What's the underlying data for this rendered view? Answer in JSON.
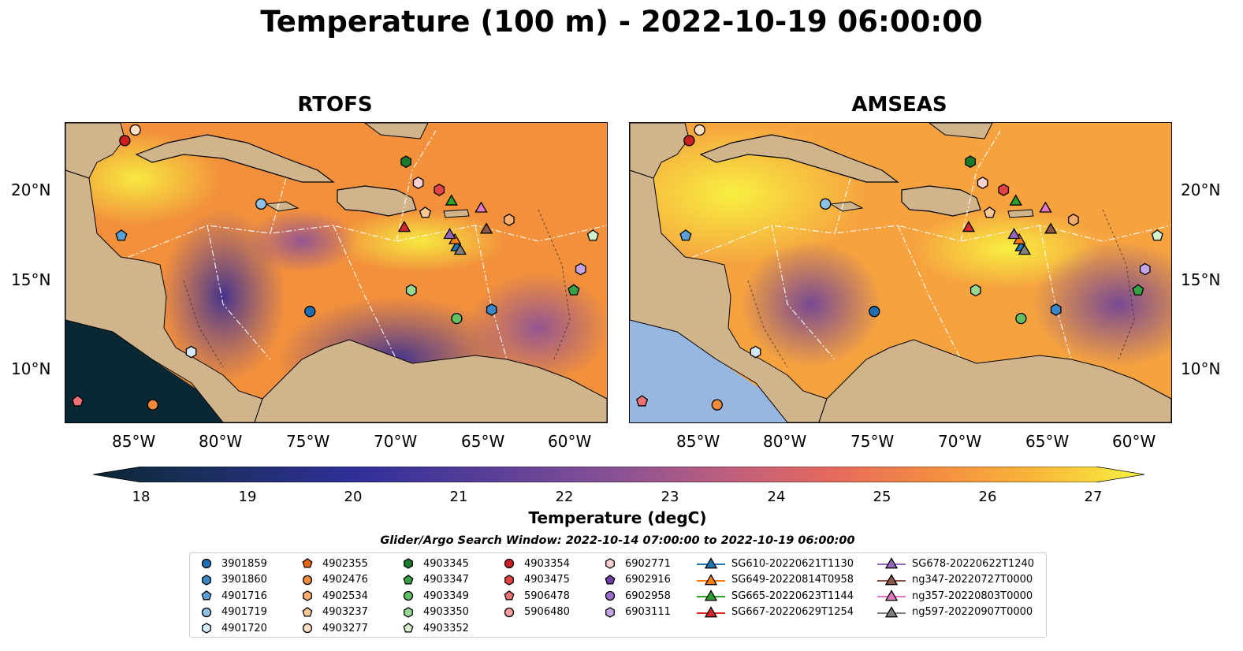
{
  "title": "Temperature (100 m) - 2022-10-19 06:00:00",
  "panels": [
    {
      "name": "rtofs",
      "title": "RTOFS"
    },
    {
      "name": "amseas",
      "title": "AMSEAS"
    }
  ],
  "map_extent": {
    "lon_min": -89,
    "lon_max": -58,
    "lat_min": 7,
    "lat_max": 24
  },
  "lat_ticks": [
    "20°N",
    "15°N",
    "10°N"
  ],
  "lon_ticks": [
    "85°W",
    "80°W",
    "75°W",
    "70°W",
    "65°W",
    "60°W"
  ],
  "colorbar": {
    "label": "Temperature (degC)",
    "min": 18,
    "max": 27,
    "extend": "both",
    "ticks": [
      "18",
      "19",
      "20",
      "21",
      "22",
      "23",
      "24",
      "25",
      "26",
      "27"
    ],
    "colormap": "thermal"
  },
  "colors": {
    "land": "#d0b48b",
    "shallow_water": "#97b6e0",
    "cold": "#0a2734",
    "warm": "#f8f341"
  },
  "search_window": "Glider/Argo Search Window: 2022-10-14 07:00:00 to 2022-10-19 06:00:00",
  "legend": [
    {
      "label": "3901859",
      "marker": "circle",
      "color": "#1f6fb2"
    },
    {
      "label": "3901860",
      "marker": "hexagon",
      "color": "#3b86c4"
    },
    {
      "label": "4901716",
      "marker": "pentagon",
      "color": "#5aa0d6"
    },
    {
      "label": "4901719",
      "marker": "circle",
      "color": "#8fc1e6"
    },
    {
      "label": "4901720",
      "marker": "hexagon",
      "color": "#d4e9f7"
    },
    {
      "label": "4902355",
      "marker": "pentagon",
      "color": "#e8680f"
    },
    {
      "label": "4902476",
      "marker": "circle",
      "color": "#f58b3a"
    },
    {
      "label": "4902534",
      "marker": "hexagon",
      "color": "#f9ad6e"
    },
    {
      "label": "4903237",
      "marker": "pentagon",
      "color": "#fcc896"
    },
    {
      "label": "4903277",
      "marker": "circle",
      "color": "#fde0c2"
    },
    {
      "label": "4903345",
      "marker": "hexagon",
      "color": "#1b7a2b"
    },
    {
      "label": "4903347",
      "marker": "pentagon",
      "color": "#35a045"
    },
    {
      "label": "4903349",
      "marker": "circle",
      "color": "#63bf63"
    },
    {
      "label": "4903350",
      "marker": "hexagon",
      "color": "#96d892"
    },
    {
      "label": "4903352",
      "marker": "pentagon",
      "color": "#d3f1cd"
    },
    {
      "label": "4903354",
      "marker": "circle",
      "color": "#cc1f24"
    },
    {
      "label": "4903475",
      "marker": "hexagon",
      "color": "#e34346"
    },
    {
      "label": "5906478",
      "marker": "pentagon",
      "color": "#ef7173"
    },
    {
      "label": "5906480",
      "marker": "circle",
      "color": "#f6a0a0"
    },
    {
      "label": "6902771",
      "marker": "hexagon",
      "color": "#fbd0cf"
    },
    {
      "label": "6902916",
      "marker": "pentagon",
      "color": "#7240a8"
    },
    {
      "label": "6902958",
      "marker": "circle",
      "color": "#9a6fcf"
    },
    {
      "label": "6903111",
      "marker": "hexagon",
      "color": "#c3a4e4"
    },
    {
      "label": "SG610-20220621T1130",
      "marker": "triangle",
      "color": "#1f77b4"
    },
    {
      "label": "SG649-20220814T0958",
      "marker": "triangle",
      "color": "#ff7f0e"
    },
    {
      "label": "SG665-20220623T1144",
      "marker": "triangle",
      "color": "#2ca02c"
    },
    {
      "label": "SG667-20220629T1254",
      "marker": "triangle",
      "color": "#d62728"
    },
    {
      "label": "SG678-20220622T1240",
      "marker": "triangle",
      "color": "#9467bd"
    },
    {
      "label": "ng347-20220727T0000",
      "marker": "triangle",
      "color": "#8c564b"
    },
    {
      "label": "ng357-20220803T0000",
      "marker": "triangle",
      "color": "#e377c2"
    },
    {
      "label": "ng597-20220907T0000",
      "marker": "triangle",
      "color": "#7f7f7f"
    }
  ],
  "observations": [
    {
      "id": "3901859",
      "lon": -75.0,
      "lat": 13.3
    },
    {
      "id": "3901860",
      "lon": -64.6,
      "lat": 13.4
    },
    {
      "id": "4901716",
      "lon": -85.8,
      "lat": 17.6
    },
    {
      "id": "4901719",
      "lon": -77.8,
      "lat": 19.4
    },
    {
      "id": "4901720",
      "lon": -81.8,
      "lat": 11.0
    },
    {
      "id": "4902476",
      "lon": -84.0,
      "lat": 8.0
    },
    {
      "id": "4902534",
      "lon": -63.6,
      "lat": 18.5
    },
    {
      "id": "4903237",
      "lon": -68.4,
      "lat": 18.9
    },
    {
      "id": "4903277",
      "lon": -85.0,
      "lat": 23.6
    },
    {
      "id": "4903345",
      "lon": -69.5,
      "lat": 21.8
    },
    {
      "id": "4903347",
      "lon": -59.9,
      "lat": 14.5
    },
    {
      "id": "4903349",
      "lon": -66.6,
      "lat": 12.9
    },
    {
      "id": "4903350",
      "lon": -69.2,
      "lat": 14.5
    },
    {
      "id": "4903352",
      "lon": -58.8,
      "lat": 17.6
    },
    {
      "id": "4903354",
      "lon": -85.6,
      "lat": 23.0
    },
    {
      "id": "4903475",
      "lon": -67.6,
      "lat": 20.2
    },
    {
      "id": "5906478",
      "lon": -88.3,
      "lat": 8.2
    },
    {
      "id": "6902771",
      "lon": -68.8,
      "lat": 20.6
    },
    {
      "id": "6903111",
      "lon": -59.5,
      "lat": 15.7
    },
    {
      "id": "SG610-20220621T1130",
      "lon": -66.6,
      "lat": 17.0
    },
    {
      "id": "SG649-20220814T0958",
      "lon": -66.7,
      "lat": 17.4
    },
    {
      "id": "SG665-20220623T1144",
      "lon": -66.9,
      "lat": 19.6
    },
    {
      "id": "SG667-20220629T1254",
      "lon": -69.6,
      "lat": 18.1
    },
    {
      "id": "SG678-20220622T1240",
      "lon": -67.0,
      "lat": 17.7
    },
    {
      "id": "ng347-20220727T0000",
      "lon": -64.9,
      "lat": 18.0
    },
    {
      "id": "ng357-20220803T0000",
      "lon": -65.2,
      "lat": 19.2
    },
    {
      "id": "ng597-20220907T0000",
      "lon": -66.4,
      "lat": 16.8
    }
  ]
}
